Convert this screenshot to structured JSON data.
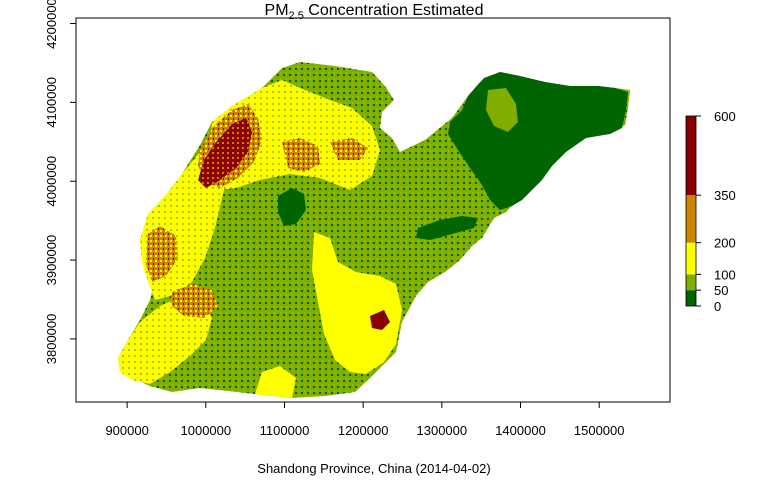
{
  "chart_data": {
    "type": "heatmap",
    "title_main": "PM",
    "title_sub": "2.5",
    "title_rest": " Concentration Estimated",
    "xlabel": "Shandong Province, China (2014-04-02)",
    "xlim": [
      835000,
      1590000
    ],
    "ylim": [
      3720000,
      4207000
    ],
    "x_ticks": [
      900000,
      1000000,
      1100000,
      1200000,
      1300000,
      1400000,
      1500000
    ],
    "x_tick_labels": [
      "900000",
      "1000000",
      "1100000",
      "1200000",
      "1300000",
      "1400000",
      "1500000"
    ],
    "y_ticks": [
      3800000,
      3900000,
      4000000,
      4100000,
      4200000
    ],
    "y_tick_labels": [
      "3800000",
      "3900000",
      "4000000",
      "4100000",
      "4200000"
    ],
    "legend": {
      "placement": "right",
      "breaks": [
        0,
        50,
        100,
        200,
        350,
        600
      ],
      "break_labels": [
        "0",
        "50",
        "100",
        "200",
        "350",
        "600"
      ],
      "colors": [
        "#006400",
        "#7fae00",
        "#ffff00",
        "#cd8500",
        "#8b0000"
      ]
    },
    "grid": false
  }
}
